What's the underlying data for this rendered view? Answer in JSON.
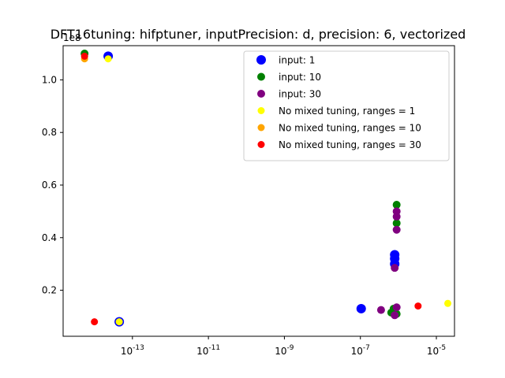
{
  "chart_data": {
    "type": "scatter",
    "title": "DFT16tuning: hifptuner, inputPrecision: d, precision: 6, vectorized",
    "xlabel": "",
    "ylabel": "",
    "xscale": "log",
    "xlim": [
      1.5e-15,
      3e-05
    ],
    "ylim": [
      2500000.0,
      113000000.0
    ],
    "y_offset_label": "1e8",
    "x_ticks": [
      {
        "value": 1e-13,
        "label": "10^-13"
      },
      {
        "value": 1e-11,
        "label": "10^-11"
      },
      {
        "value": 1e-09,
        "label": "10^-9"
      },
      {
        "value": 1e-07,
        "label": "10^-7"
      },
      {
        "value": 1e-05,
        "label": "10^-5"
      }
    ],
    "y_ticks": [
      {
        "value": 20000000.0,
        "label": "0.2"
      },
      {
        "value": 40000000.0,
        "label": "0.4"
      },
      {
        "value": 60000000.0,
        "label": "0.6"
      },
      {
        "value": 80000000.0,
        "label": "0.8"
      },
      {
        "value": 100000000.0,
        "label": "1.0"
      }
    ],
    "legend_position": "top-right",
    "grid": false,
    "series": [
      {
        "name": "input: 1",
        "color": "#0000ff",
        "size": "large",
        "points": [
          [
            2.3e-14,
            109000000.0
          ],
          [
            4.5e-14,
            8000000.0
          ],
          [
            1.05e-07,
            13000000.0
          ],
          [
            8e-07,
            33500000.0
          ],
          [
            8e-07,
            32000000.0
          ],
          [
            8e-07,
            30000000.0
          ]
        ]
      },
      {
        "name": "input: 10",
        "color": "#008000",
        "size": "medium",
        "points": [
          [
            5.5e-15,
            110000000.0
          ],
          [
            9e-07,
            52500000.0
          ],
          [
            9e-07,
            45500000.0
          ],
          [
            7.5e-07,
            13000000.0
          ],
          [
            6.5e-07,
            11500000.0
          ],
          [
            9e-07,
            11000000.0
          ]
        ]
      },
      {
        "name": "input: 30",
        "color": "#800080",
        "size": "medium",
        "points": [
          [
            9e-07,
            50000000.0
          ],
          [
            9e-07,
            48000000.0
          ],
          [
            9e-07,
            43000000.0
          ],
          [
            8e-07,
            28500000.0
          ],
          [
            3.5e-07,
            12500000.0
          ],
          [
            9e-07,
            13500000.0
          ],
          [
            8e-07,
            10500000.0
          ]
        ]
      },
      {
        "name": "No mixed tuning, ranges = 1",
        "color": "#ffff00",
        "size": "small",
        "points": [
          [
            2.3e-14,
            108000000.0
          ],
          [
            4.5e-14,
            8000000.0
          ],
          [
            2e-05,
            15000000.0
          ]
        ]
      },
      {
        "name": "No mixed tuning, ranges = 10",
        "color": "#ffa500",
        "size": "small",
        "points": [
          [
            5.5e-15,
            108000000.0
          ]
        ]
      },
      {
        "name": "No mixed tuning, ranges = 30",
        "color": "#ff0000",
        "size": "small",
        "points": [
          [
            5.5e-15,
            109000000.0
          ],
          [
            1e-14,
            8000000.0
          ],
          [
            3.3e-06,
            14000000.0
          ]
        ]
      }
    ]
  }
}
